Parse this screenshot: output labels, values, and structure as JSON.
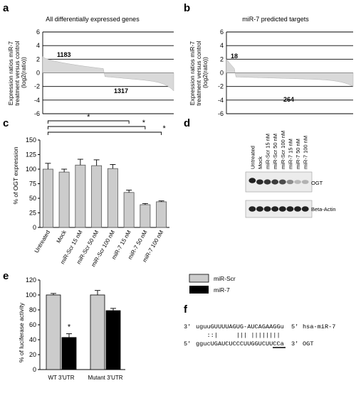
{
  "chart_data": [
    {
      "panel": "a",
      "type": "area",
      "title": "All differentially expressed genes",
      "ylabel": "Expression ratios miR-7 treatment versus control (log2(ratio))",
      "ylim": [
        -6,
        6
      ],
      "yticks": [
        -6,
        -4,
        -2,
        0,
        2,
        4,
        6
      ],
      "annotations": [
        "1183",
        "1317"
      ],
      "up_count": 1183,
      "down_count": 1317,
      "series_description": "sorted log2 ratios decreasing from about 2.4 to about -2.7",
      "grid": true
    },
    {
      "panel": "b",
      "type": "area",
      "title": "miR-7 predicted targets",
      "ylabel": "Expression ratios miR-7 treatment versus control (log2(ratio))",
      "ylim": [
        -6,
        6
      ],
      "yticks": [
        -6,
        -4,
        -2,
        0,
        2,
        4,
        6
      ],
      "annotations": [
        "18",
        "264"
      ],
      "up_count": 18,
      "down_count": 264,
      "grid": true
    },
    {
      "panel": "c",
      "type": "bar",
      "ylabel": "% of OGT expression",
      "ylim": [
        0,
        150
      ],
      "yticks": [
        0,
        25,
        50,
        75,
        100,
        125,
        150
      ],
      "categories": [
        "Untreated",
        "Mock",
        "miR-Scr 15 nM",
        "miR-Scr 50 nM",
        "miR-Scr 100 nM",
        "miR-7 15 nM",
        "miR-7 50 nM",
        "miR-7 100 nM"
      ],
      "values": [
        100,
        95,
        107,
        106,
        101,
        60,
        39,
        44
      ],
      "errors": [
        10,
        5,
        10,
        10,
        7,
        4,
        2,
        1.5
      ],
      "significance": [
        {
          "from": "Untreated",
          "to": "miR-7 15 nM",
          "label": "*"
        },
        {
          "from": "Untreated",
          "to": "miR-7 50 nM",
          "label": "*"
        },
        {
          "from": "Untreated",
          "to": "miR-7 100 nM",
          "label": "*"
        }
      ]
    },
    {
      "panel": "e",
      "type": "bar",
      "ylabel": "% of luciferase activity",
      "ylim": [
        0,
        120
      ],
      "yticks": [
        0,
        20,
        40,
        60,
        80,
        100,
        120
      ],
      "categories": [
        "WT 3'UTR",
        "Mutant 3'UTR"
      ],
      "series": [
        {
          "name": "miR-Scr",
          "values": [
            100,
            100
          ],
          "errors": [
            2,
            6
          ],
          "color": "#cccccc"
        },
        {
          "name": "miR-7",
          "values": [
            43,
            79
          ],
          "errors": [
            5,
            3
          ],
          "color": "#000000"
        }
      ],
      "annotations": [
        "*"
      ],
      "legend": "top-right"
    }
  ],
  "panels": {
    "a": "a",
    "b": "b",
    "c": "c",
    "d": "d",
    "e": "e",
    "f": "f"
  },
  "blot": {
    "lanes": [
      "Untreated",
      "Mock",
      "miR-Scr 15 nM",
      "miR-Scr 50 nM",
      "miR-Scr 100 nM",
      "miR-7 15 nM",
      "miR-7 50 nM",
      "miR-7 100 nM"
    ],
    "bands": [
      "OGT",
      "Beta-Actin"
    ],
    "ogt_intensity": [
      0.95,
      0.9,
      0.85,
      0.82,
      0.75,
      0.45,
      0.25,
      0.28
    ]
  },
  "sequence": {
    "top_prefix": "3'",
    "top": "uguuGUUUUAGUG-AUCAGAAGGu",
    "top_suffix": "5'",
    "top_label": "hsa-miR-7",
    "pairing": "   ::|     ||| |||||||| ",
    "bottom_prefix": "5'",
    "bottom": "ggucUGAUCUCCCUUGGUCUUCCa",
    "bottom_suffix": "3'",
    "bottom_label": "OGT"
  },
  "colors": {
    "bar_fill": "#cccccc",
    "bar_stroke": "#555555",
    "area_fill": "#d9d9d9",
    "mir7": "#000000"
  }
}
